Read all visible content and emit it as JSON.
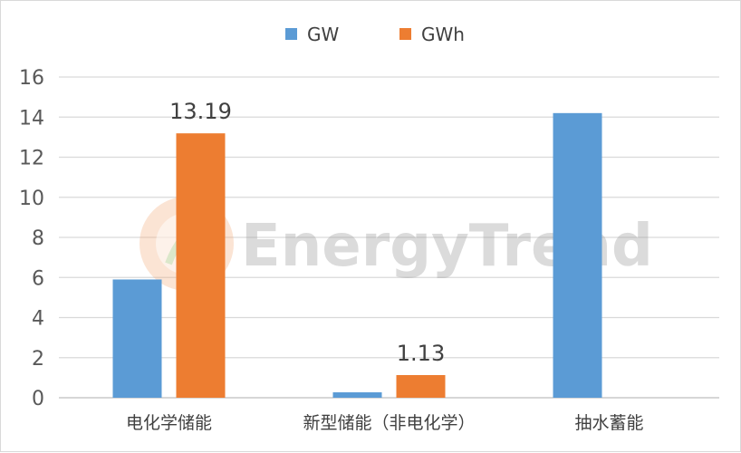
{
  "watermark": {
    "text": "EnergyTrend"
  },
  "colors": {
    "gw": "#5b9bd5",
    "gwh": "#ed7d31",
    "grid": "#d9d9d9",
    "axis": "#bfbfbf"
  },
  "chart_data": {
    "type": "bar",
    "categories": [
      "电化学储能",
      "新型储能（非电化学）",
      "抽水蓄能"
    ],
    "series": [
      {
        "name": "GW",
        "values": [
          5.9,
          0.27,
          14.2
        ]
      },
      {
        "name": "GWh",
        "values": [
          13.19,
          1.13,
          null
        ]
      }
    ],
    "data_labels": [
      {
        "series": 1,
        "index": 0,
        "text": "13.19"
      },
      {
        "series": 1,
        "index": 1,
        "text": "1.13"
      }
    ],
    "ylim": [
      0,
      16
    ],
    "yticks": [
      0,
      2,
      4,
      6,
      8,
      10,
      12,
      14,
      16
    ],
    "grid": true,
    "legend": "top-center"
  }
}
